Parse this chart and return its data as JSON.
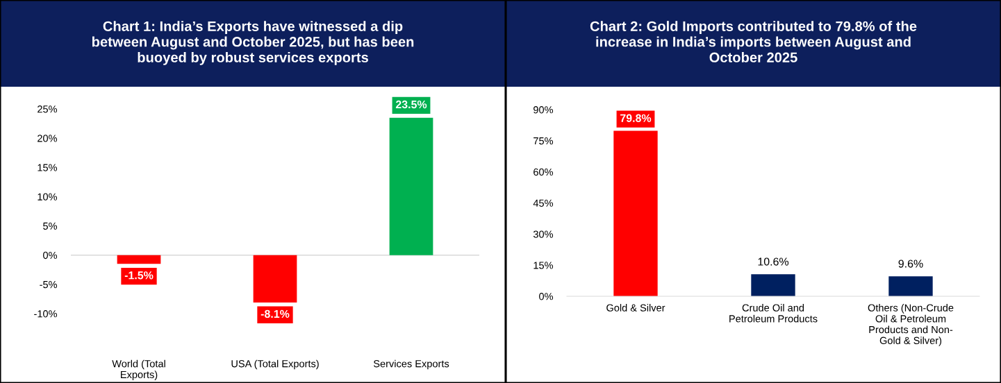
{
  "chart_data": [
    {
      "type": "bar",
      "title": "Chart 1: India’s Exports have witnessed a dip\nbetween August and October 2025, but has been\nbuoyed by robust services exports",
      "categories": [
        "World (Total\nExports)",
        "USA (Total Exports)",
        "Services Exports"
      ],
      "values": [
        -1.5,
        -8.1,
        23.5
      ],
      "colors": [
        "#ff0000",
        "#ff0000",
        "#00b050"
      ],
      "value_labels": [
        "-1.5%",
        "-8.1%",
        "23.5%"
      ],
      "ylim": [
        -10,
        25
      ],
      "yticks": [
        {
          "value": -10,
          "label": "-10%"
        },
        {
          "value": -5,
          "label": "-5%"
        },
        {
          "value": 0,
          "label": "0%"
        },
        {
          "value": 5,
          "label": "5%"
        },
        {
          "value": 10,
          "label": "10%"
        },
        {
          "value": 15,
          "label": "15%"
        },
        {
          "value": 20,
          "label": "20%"
        },
        {
          "value": 25,
          "label": "25%"
        }
      ],
      "ref_lines": [
        {
          "axis": "y",
          "value": 0,
          "color": "#d9d9d9"
        }
      ],
      "grid": false,
      "legend": false
    },
    {
      "type": "bar",
      "title": "Chart 2: Gold Imports contributed to 79.8% of the\nincrease in India’s imports between August and\nOctober 2025",
      "categories": [
        "Gold & Silver",
        "Crude Oil and\nPetroleum Products",
        "Others (Non-Crude\nOil & Petroleum\nProducts and Non-\nGold & Silver)"
      ],
      "values": [
        79.8,
        10.6,
        9.6
      ],
      "colors": [
        "#ff0000",
        "#002060",
        "#002060"
      ],
      "value_labels": [
        "79.8%",
        "10.6%",
        "9.6%"
      ],
      "ylim": [
        0,
        90
      ],
      "yticks": [
        {
          "value": 0,
          "label": "0%"
        },
        {
          "value": 15,
          "label": "15%"
        },
        {
          "value": 30,
          "label": "30%"
        },
        {
          "value": 45,
          "label": "45%"
        },
        {
          "value": 60,
          "label": "60%"
        },
        {
          "value": 75,
          "label": "75%"
        },
        {
          "value": 90,
          "label": "90%"
        }
      ],
      "grid": false,
      "legend": false
    }
  ]
}
